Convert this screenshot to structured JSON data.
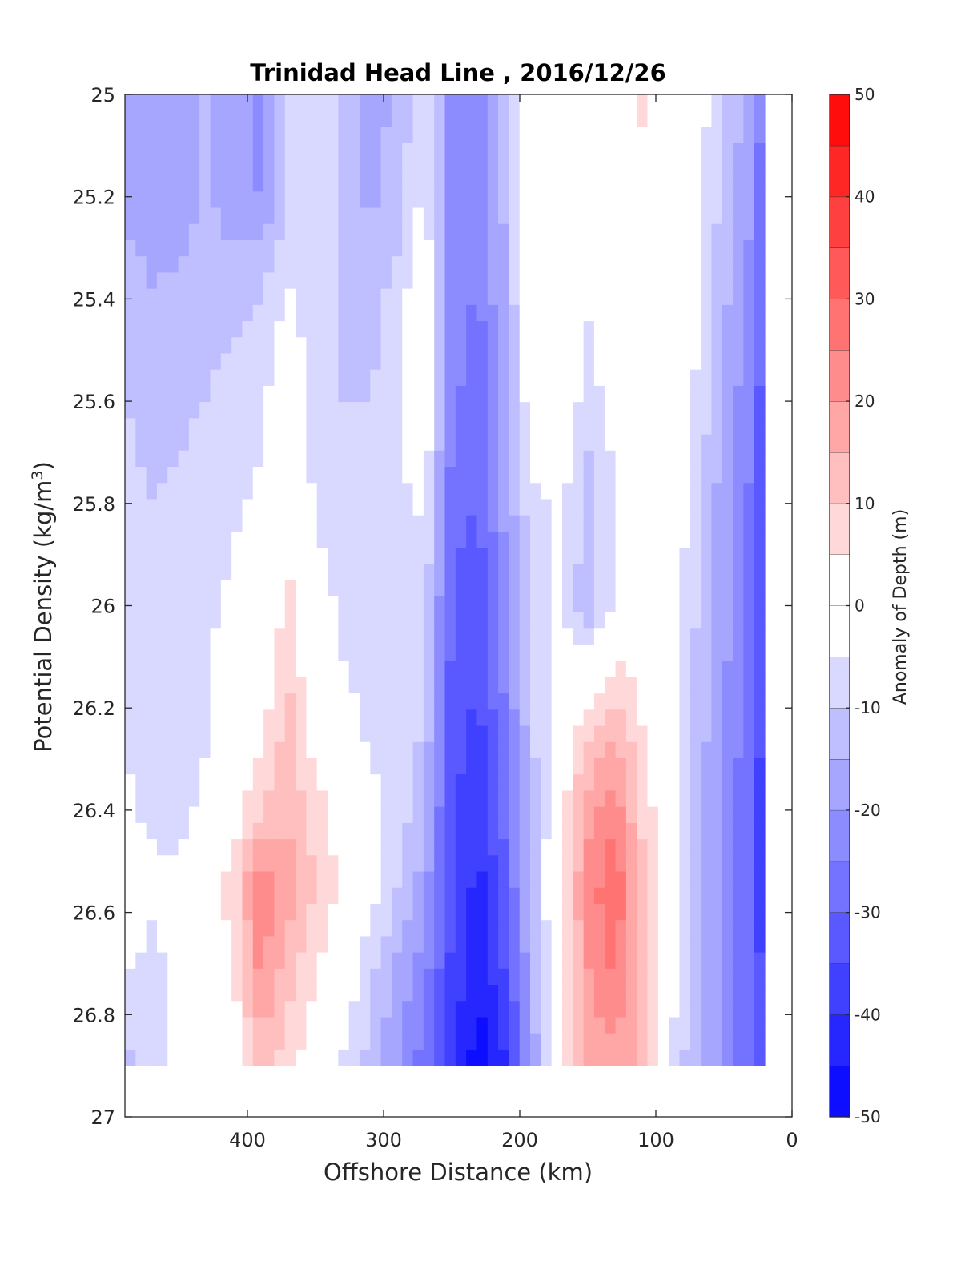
{
  "chart_data": {
    "type": "heatmap",
    "subtype": "filled-contour",
    "title": "Trinidad Head Line , 2016/12/26",
    "xlabel": "Offshore Distance (km)",
    "ylabel_main": "Potential Density (kg/m",
    "ylabel_sup": "3",
    "ylabel_tail": ")",
    "colorbar_label": "Anomaly of Depth (m)",
    "x_axis": {
      "range": [
        490,
        0
      ],
      "reversed": true,
      "ticks": [
        400,
        300,
        200,
        100,
        0
      ]
    },
    "y_axis": {
      "range": [
        25,
        27
      ],
      "reversed": true,
      "ticks": [
        25,
        25.2,
        25.4,
        25.6,
        25.8,
        26,
        26.2,
        26.4,
        26.6,
        26.8,
        27
      ]
    },
    "y_tick_labels": [
      "25",
      "25.2",
      "25.4",
      "25.6",
      "25.8",
      "26",
      "26.2",
      "26.4",
      "26.6",
      "26.8",
      "27"
    ],
    "x_tick_labels": [
      "400",
      "300",
      "200",
      "100",
      "0"
    ],
    "data_extent": {
      "x": [
        490,
        20
      ],
      "y": [
        25,
        26.9
      ]
    },
    "colorbar": {
      "range": [
        -50,
        50
      ],
      "ticks": [
        50,
        40,
        30,
        20,
        10,
        0,
        -10,
        -20,
        -30,
        -40,
        -50
      ],
      "tick_labels": [
        "50",
        "40",
        "30",
        "20",
        "10",
        "0",
        "-10",
        "-20",
        "-30",
        "-40",
        "-50"
      ]
    },
    "colors": {
      "positive": "#ff0000",
      "negative": "#0000ff",
      "zero": "#ffffff",
      "contour": "#000000"
    },
    "grid": false,
    "x_knots": [
      490,
      470,
      450,
      430,
      410,
      390,
      370,
      350,
      330,
      310,
      290,
      270,
      250,
      230,
      210,
      190,
      170,
      150,
      130,
      110,
      90,
      70,
      50,
      30,
      20
    ],
    "y_knots": [
      25.0,
      25.2,
      25.4,
      25.6,
      25.8,
      26.0,
      26.2,
      26.4,
      26.55,
      26.7,
      26.9
    ],
    "values": [
      [
        -16,
        -20,
        -18,
        -14,
        -18,
        -22,
        -10,
        -6,
        -12,
        -18,
        -14,
        -6,
        -22,
        -24,
        -14,
        0,
        0,
        0,
        0,
        8,
        0,
        -2,
        -10,
        -18,
        -28
      ],
      [
        -16,
        -20,
        -18,
        -14,
        -18,
        -20,
        -10,
        -6,
        -12,
        -16,
        -12,
        -4,
        -22,
        -24,
        -14,
        0,
        0,
        0,
        0,
        0,
        0,
        -2,
        -12,
        -20,
        -30
      ],
      [
        -12,
        -14,
        -14,
        -12,
        -12,
        -10,
        -4,
        -8,
        -10,
        -12,
        -8,
        2,
        -22,
        -26,
        -14,
        0,
        0,
        -4,
        0,
        0,
        0,
        -4,
        -14,
        -22,
        -34
      ],
      [
        -10,
        -12,
        -12,
        -10,
        -8,
        -6,
        0,
        -8,
        -10,
        -10,
        -8,
        2,
        -24,
        -28,
        -16,
        0,
        0,
        -8,
        -2,
        0,
        0,
        -6,
        -16,
        -24,
        -34
      ],
      [
        -8,
        -10,
        -8,
        -6,
        -6,
        -4,
        4,
        -6,
        -8,
        -8,
        -6,
        -4,
        -28,
        -30,
        -18,
        -6,
        -4,
        -12,
        -6,
        0,
        0,
        -8,
        -18,
        -26,
        -36
      ],
      [
        -8,
        -8,
        -6,
        -6,
        -4,
        0,
        6,
        -2,
        -6,
        -8,
        -6,
        -8,
        -30,
        -34,
        -22,
        -8,
        -4,
        -14,
        -4,
        0,
        0,
        -10,
        -18,
        -26,
        -36
      ],
      [
        -6,
        -8,
        -6,
        -6,
        0,
        2,
        12,
        0,
        -4,
        -6,
        -6,
        -10,
        -32,
        -36,
        -24,
        -10,
        0,
        6,
        12,
        4,
        0,
        -12,
        -20,
        -28,
        -38
      ],
      [
        -4,
        -6,
        -6,
        -4,
        2,
        10,
        14,
        8,
        0,
        -4,
        -6,
        -14,
        -34,
        -40,
        -28,
        -12,
        2,
        18,
        24,
        8,
        0,
        -12,
        -22,
        -30,
        -40
      ],
      [
        -2,
        -4,
        -4,
        0,
        8,
        24,
        18,
        10,
        4,
        -2,
        -10,
        -18,
        -34,
        -42,
        -30,
        -12,
        4,
        22,
        30,
        12,
        0,
        -14,
        -22,
        -30,
        -40
      ],
      [
        -4,
        -6,
        -4,
        0,
        6,
        22,
        12,
        6,
        0,
        -8,
        -16,
        -22,
        -36,
        -44,
        -34,
        -14,
        4,
        20,
        26,
        14,
        0,
        -12,
        -22,
        -30,
        -38
      ],
      [
        -12,
        -8,
        -4,
        -2,
        0,
        12,
        8,
        0,
        -6,
        -12,
        -20,
        -28,
        -40,
        -48,
        -40,
        -18,
        4,
        16,
        18,
        14,
        -6,
        -14,
        -22,
        -30,
        -36
      ]
    ]
  }
}
